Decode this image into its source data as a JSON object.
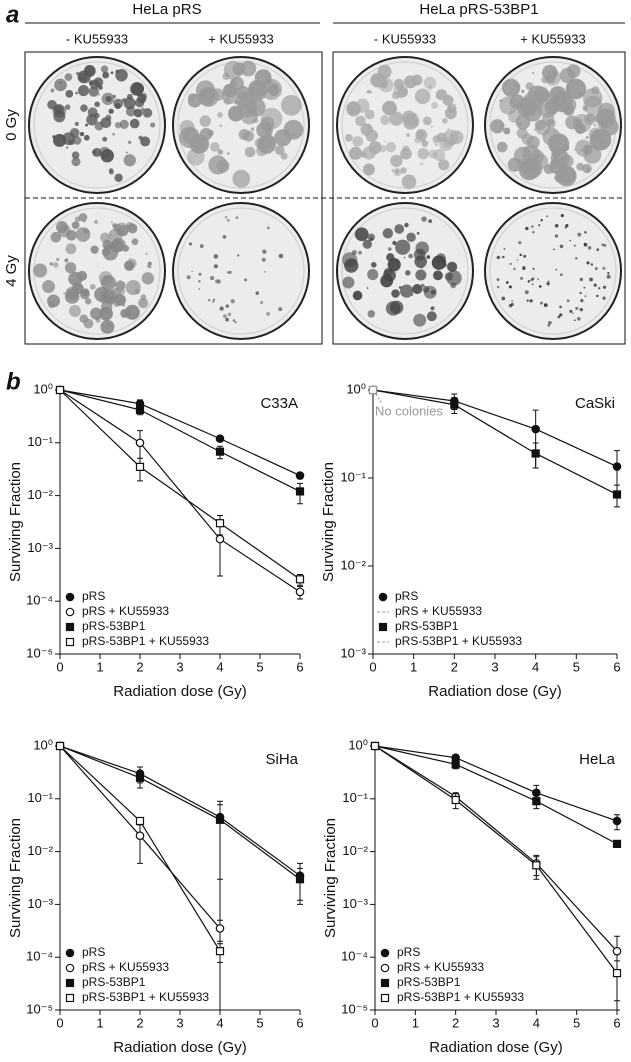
{
  "panel_a": {
    "label": "a",
    "groups": [
      "HeLa pRS",
      "HeLa pRS-53BP1"
    ],
    "treatments": [
      "- KU55933",
      "+ KU55933",
      "- KU55933",
      "+ KU55933"
    ],
    "doses": [
      "0 Gy",
      "4 Gy"
    ]
  },
  "panel_b": {
    "label": "b"
  },
  "chart_data": [
    {
      "type": "line",
      "title": "C33A",
      "x_label": "Radiation dose (Gy)",
      "y_label": "Surviving Fraction",
      "log_y": true,
      "x": [
        0,
        2,
        4,
        6
      ],
      "xlim": [
        0,
        6
      ],
      "xticks": [
        0,
        1,
        2,
        3,
        4,
        5,
        6
      ],
      "ylim": [
        1e-05,
        1
      ],
      "yticks": [
        {
          "value": 1e-05,
          "label": "10⁻⁵"
        },
        {
          "value": 0.0001,
          "label": "10⁻⁴"
        },
        {
          "value": 0.001,
          "label": "10⁻³"
        },
        {
          "value": 0.01,
          "label": "10⁻²"
        },
        {
          "value": 0.1,
          "label": "10⁻¹"
        },
        {
          "value": 1,
          "label": "10⁰"
        }
      ],
      "legend": "lower left",
      "series": [
        {
          "name": "pRS",
          "color": "#111111",
          "marker": "circle",
          "filled": true,
          "values": [
            1,
            0.55,
            0.12,
            0.024
          ],
          "errors": [
            0,
            0.1,
            0.015,
            0.003
          ]
        },
        {
          "name": "pRS + KU55933",
          "color": "#111111",
          "marker": "circle",
          "filled": false,
          "values": [
            1,
            0.1,
            0.0015,
            0.00015
          ],
          "errors": [
            0,
            0.07,
            0.0012,
            4e-05
          ]
        },
        {
          "name": "pRS-53BP1",
          "color": "#111111",
          "marker": "square",
          "filled": true,
          "values": [
            1,
            0.42,
            0.068,
            0.012
          ],
          "errors": [
            0,
            0.08,
            0.018,
            0.005
          ]
        },
        {
          "name": "pRS-53BP1 + KU55933",
          "color": "#111111",
          "marker": "square",
          "filled": false,
          "values": [
            1,
            0.035,
            0.003,
            0.00026
          ],
          "errors": [
            0,
            0.016,
            0.0012,
            6e-05
          ]
        }
      ]
    },
    {
      "type": "line",
      "title": "CaSki",
      "x_label": "Radiation dose (Gy)",
      "y_label": "Surviving Fraction",
      "log_y": true,
      "x": [
        0,
        2,
        4,
        6
      ],
      "xlim": [
        0,
        6
      ],
      "xticks": [
        0,
        1,
        2,
        3,
        4,
        5,
        6
      ],
      "ylim": [
        0.001,
        1
      ],
      "yticks": [
        {
          "value": 0.001,
          "label": "10⁻³"
        },
        {
          "value": 0.01,
          "label": "10⁻²"
        },
        {
          "value": 0.1,
          "label": "10⁻¹"
        },
        {
          "value": 1,
          "label": "10⁰"
        }
      ],
      "legend": "lower left",
      "annotation": "No colonies",
      "series": [
        {
          "name": "pRS",
          "color": "#111111",
          "marker": "circle",
          "filled": true,
          "values": [
            1,
            0.75,
            0.36,
            0.135
          ],
          "errors": [
            0,
            0.15,
            0.23,
            0.07
          ]
        },
        {
          "name": "pRS + KU55933",
          "color": "#999999",
          "marker": "circle",
          "filled": false,
          "dashed": true,
          "values": [
            1,
            null,
            null,
            null
          ],
          "errors": [
            0,
            null,
            null,
            null
          ]
        },
        {
          "name": "pRS-53BP1",
          "color": "#111111",
          "marker": "square",
          "filled": true,
          "values": [
            1,
            0.68,
            0.19,
            0.065
          ],
          "errors": [
            0,
            0.14,
            0.06,
            0.018
          ]
        },
        {
          "name": "pRS-53BP1 + KU55933",
          "color": "#999999",
          "marker": "square",
          "filled": false,
          "dashed": true,
          "values": [
            1,
            null,
            null,
            null
          ],
          "errors": [
            0,
            null,
            null,
            null
          ]
        }
      ]
    },
    {
      "type": "line",
      "title": "SiHa",
      "x_label": "Radiation dose (Gy)",
      "y_label": "Surviving Fraction",
      "log_y": true,
      "x": [
        0,
        2,
        4,
        6
      ],
      "xlim": [
        0,
        6
      ],
      "xticks": [
        0,
        1,
        2,
        3,
        4,
        5,
        6
      ],
      "ylim": [
        1e-05,
        1
      ],
      "yticks": [
        {
          "value": 1e-05,
          "label": "10⁻⁵"
        },
        {
          "value": 0.0001,
          "label": "10⁻⁴"
        },
        {
          "value": 0.001,
          "label": "10⁻³"
        },
        {
          "value": 0.01,
          "label": "10⁻²"
        },
        {
          "value": 0.1,
          "label": "10⁻¹"
        },
        {
          "value": 1,
          "label": "10⁰"
        }
      ],
      "legend": "lower left",
      "series": [
        {
          "name": "pRS",
          "color": "#111111",
          "marker": "circle",
          "filled": true,
          "values": [
            1,
            0.3,
            0.045,
            0.0035
          ],
          "errors": [
            0,
            0.1,
            0.045,
            0.0025
          ]
        },
        {
          "name": "pRS + KU55933",
          "color": "#111111",
          "marker": "circle",
          "filled": false,
          "values": [
            1,
            0.02,
            0.00035,
            null
          ],
          "errors": [
            0,
            0.014,
            0.00015,
            null
          ]
        },
        {
          "name": "pRS-53BP1",
          "color": "#111111",
          "marker": "square",
          "filled": true,
          "values": [
            1,
            0.25,
            0.04,
            0.003
          ],
          "errors": [
            0,
            0.09,
            0.037,
            0.0018
          ]
        },
        {
          "name": "pRS-53BP1 + KU55933",
          "color": "#111111",
          "marker": "square",
          "filled": false,
          "values": [
            1,
            0.038,
            0.00013,
            null
          ],
          "errors": [
            0,
            0.006,
            5e-05,
            null
          ]
        }
      ]
    },
    {
      "type": "line",
      "title": "HeLa",
      "x_label": "Radiation dose (Gy)",
      "y_label": "Surviving Fraction",
      "log_y": true,
      "x": [
        0,
        2,
        4,
        6
      ],
      "xlim": [
        0,
        6
      ],
      "xticks": [
        0,
        1,
        2,
        3,
        4,
        5,
        6
      ],
      "ylim": [
        1e-05,
        1
      ],
      "yticks": [
        {
          "value": 1e-05,
          "label": "10⁻⁵"
        },
        {
          "value": 0.0001,
          "label": "10⁻⁴"
        },
        {
          "value": 0.001,
          "label": "10⁻³"
        },
        {
          "value": 0.01,
          "label": "10⁻²"
        },
        {
          "value": 0.1,
          "label": "10⁻¹"
        },
        {
          "value": 1,
          "label": "10⁰"
        }
      ],
      "legend": "lower left",
      "series": [
        {
          "name": "pRS",
          "color": "#111111",
          "marker": "circle",
          "filled": true,
          "values": [
            1,
            0.6,
            0.13,
            0.038
          ],
          "errors": [
            0,
            0.08,
            0.05,
            0.012
          ]
        },
        {
          "name": "pRS + KU55933",
          "color": "#111111",
          "marker": "circle",
          "filled": false,
          "values": [
            1,
            0.11,
            0.006,
            0.00013
          ],
          "errors": [
            0,
            0.02,
            0.0025,
            0.00012
          ]
        },
        {
          "name": "pRS-53BP1",
          "color": "#111111",
          "marker": "square",
          "filled": true,
          "values": [
            1,
            0.45,
            0.09,
            0.014
          ],
          "errors": [
            0,
            0.08,
            0.025,
            0.002
          ]
        },
        {
          "name": "pRS-53BP1 + KU55933",
          "color": "#111111",
          "marker": "square",
          "filled": false,
          "values": [
            1,
            0.095,
            0.0055,
            5e-05
          ],
          "errors": [
            0,
            0.03,
            0.0025,
            3.5e-05
          ]
        }
      ]
    }
  ]
}
